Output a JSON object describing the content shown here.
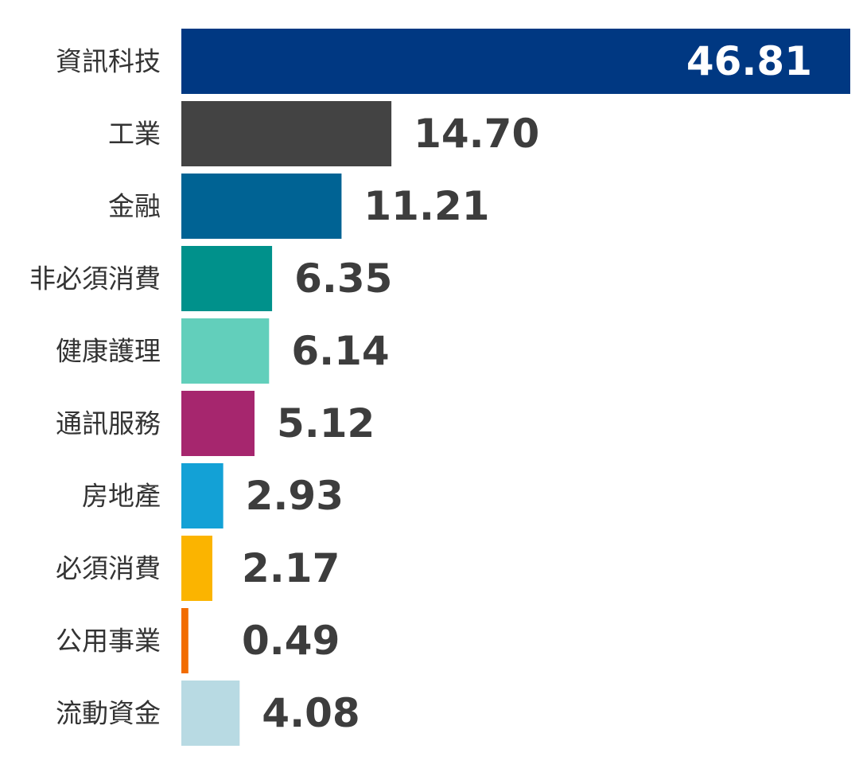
{
  "chart_data": {
    "type": "bar",
    "orientation": "horizontal",
    "categories": [
      "資訊科技",
      "工業",
      "金融",
      "非必須消費",
      "健康護理",
      "通訊服務",
      "房地產",
      "必須消費",
      "公用事業",
      "流動資金"
    ],
    "values": [
      46.81,
      14.7,
      11.21,
      6.35,
      6.14,
      5.12,
      2.93,
      2.17,
      0.49,
      4.08
    ],
    "value_labels": [
      "46.81",
      "14.70",
      "11.21",
      "6.35",
      "6.14",
      "5.12",
      "2.93",
      "2.17",
      "0.49",
      "4.08"
    ],
    "colors": [
      "#003882",
      "#434343",
      "#006394",
      "#00918b",
      "#62cfbb",
      "#a6266e",
      "#13a1d6",
      "#fbb400",
      "#f26c00",
      "#b8dae3"
    ],
    "title": "",
    "xlabel": "",
    "ylabel": "",
    "xlim": [
      0,
      46.81
    ],
    "grid": false,
    "legend": "none"
  }
}
